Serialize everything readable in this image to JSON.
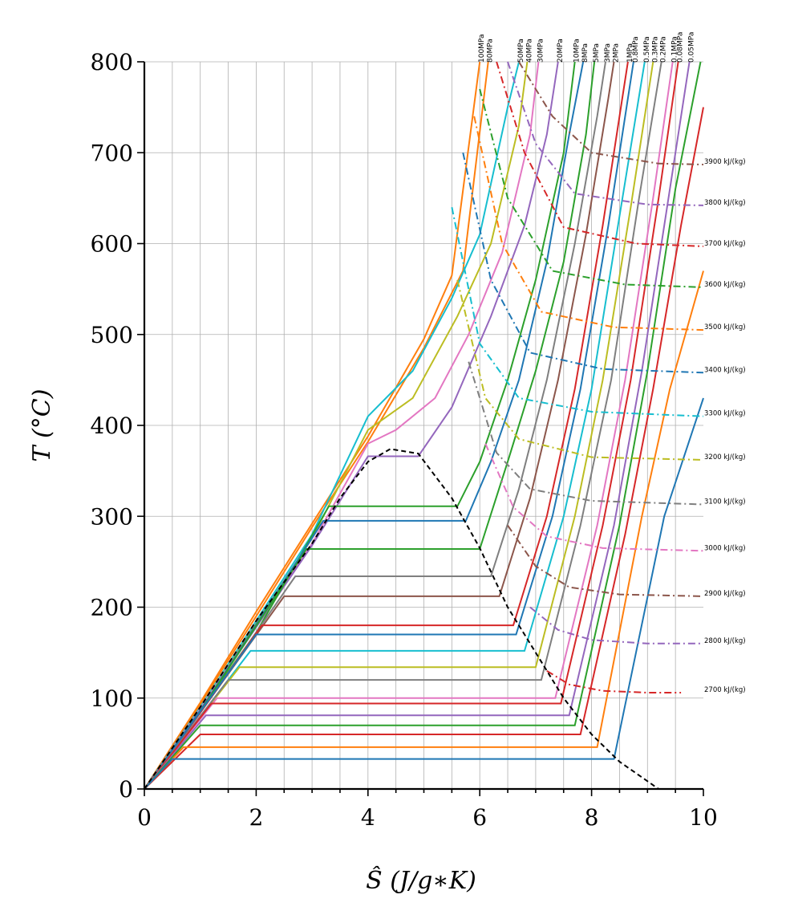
{
  "chart_data": {
    "type": "line",
    "xlabel": "Ŝ (J/g∗K)",
    "ylabel": "T (°C)",
    "xlim": [
      0,
      10
    ],
    "ylim": [
      0,
      800
    ],
    "x_ticks": [
      "0",
      "2",
      "4",
      "6",
      "8",
      "10"
    ],
    "y_ticks": [
      "0",
      "100",
      "200",
      "300",
      "400",
      "500",
      "600",
      "700",
      "800"
    ],
    "grid": true,
    "saturation_dome": {
      "style": "dashed",
      "color": "#000000",
      "points": [
        [
          0,
          0
        ],
        [
          1,
          90
        ],
        [
          2,
          185
        ],
        [
          3,
          270
        ],
        [
          3.5,
          320
        ],
        [
          4,
          360
        ],
        [
          4.4,
          374
        ],
        [
          4.9,
          369
        ],
        [
          5.5,
          320
        ],
        [
          6,
          265
        ],
        [
          6.5,
          200
        ],
        [
          7,
          150
        ],
        [
          7.5,
          100
        ],
        [
          8,
          60
        ],
        [
          8.5,
          30
        ],
        [
          9.2,
          0
        ]
      ]
    },
    "isobars": [
      {
        "label": "100MPa",
        "color": "#ff7f0e",
        "points": [
          [
            0,
            0
          ],
          [
            1,
            95
          ],
          [
            2,
            195
          ],
          [
            3,
            292
          ],
          [
            4,
            388
          ],
          [
            5,
            495
          ],
          [
            5.5,
            565
          ],
          [
            6,
            800
          ]
        ]
      },
      {
        "label": "80MPa",
        "color": "#ff7f0e",
        "points": [
          [
            0,
            0
          ],
          [
            1,
            93
          ],
          [
            2,
            190
          ],
          [
            3,
            288
          ],
          [
            4,
            382
          ],
          [
            5,
            485
          ],
          [
            5.7,
            570
          ],
          [
            6.15,
            800
          ]
        ]
      },
      {
        "label": "50MPa",
        "color": "#17becf",
        "points": [
          [
            0,
            0
          ],
          [
            1,
            90
          ],
          [
            2,
            185
          ],
          [
            3,
            280
          ],
          [
            4,
            410
          ],
          [
            4.8,
            460
          ],
          [
            5.5,
            540
          ],
          [
            6,
            610
          ],
          [
            6.5,
            750
          ],
          [
            6.7,
            800
          ]
        ]
      },
      {
        "label": "40MPa",
        "color": "#bcbd22",
        "points": [
          [
            0,
            0
          ],
          [
            1,
            88
          ],
          [
            2,
            182
          ],
          [
            3,
            276
          ],
          [
            4,
            395
          ],
          [
            4.8,
            430
          ],
          [
            5.6,
            520
          ],
          [
            6.2,
            600
          ],
          [
            6.7,
            730
          ],
          [
            6.85,
            800
          ]
        ]
      },
      {
        "label": "30MPa",
        "color": "#e377c2",
        "points": [
          [
            0,
            0
          ],
          [
            1,
            88
          ],
          [
            2,
            180
          ],
          [
            3,
            270
          ],
          [
            4,
            380
          ],
          [
            4.5,
            395
          ],
          [
            5.2,
            430
          ],
          [
            5.8,
            500
          ],
          [
            6.4,
            590
          ],
          [
            6.9,
            720
          ],
          [
            7.05,
            800
          ]
        ]
      },
      {
        "label": "20MPa",
        "color": "#9467bd",
        "points": [
          [
            0,
            0
          ],
          [
            1,
            87
          ],
          [
            2,
            178
          ],
          [
            3,
            268
          ],
          [
            4,
            366
          ],
          [
            4.9,
            366
          ],
          [
            5.5,
            420
          ],
          [
            6.2,
            520
          ],
          [
            6.8,
            620
          ],
          [
            7.2,
            720
          ],
          [
            7.4,
            800
          ]
        ]
      },
      {
        "label": "10MPa",
        "color": "#2ca02c",
        "points": [
          [
            0,
            0
          ],
          [
            1,
            86
          ],
          [
            2,
            172
          ],
          [
            3.3,
            311
          ],
          [
            5.6,
            311
          ],
          [
            6,
            360
          ],
          [
            6.5,
            450
          ],
          [
            7,
            560
          ],
          [
            7.5,
            700
          ],
          [
            7.7,
            800
          ]
        ]
      },
      {
        "label": "8MPa",
        "color": "#1f77b4",
        "points": [
          [
            0,
            0
          ],
          [
            1,
            86
          ],
          [
            3.2,
            295
          ],
          [
            5.75,
            295
          ],
          [
            6.2,
            360
          ],
          [
            6.7,
            450
          ],
          [
            7.2,
            580
          ],
          [
            7.6,
            720
          ],
          [
            7.85,
            800
          ]
        ]
      },
      {
        "label": "5MPa",
        "color": "#2ca02c",
        "points": [
          [
            0,
            0
          ],
          [
            1,
            85
          ],
          [
            2.9,
            264
          ],
          [
            6,
            264
          ],
          [
            6.5,
            360
          ],
          [
            7,
            460
          ],
          [
            7.5,
            580
          ],
          [
            7.9,
            720
          ],
          [
            8.05,
            800
          ]
        ]
      },
      {
        "label": "3MPa",
        "color": "#7f7f7f",
        "points": [
          [
            0,
            0
          ],
          [
            1,
            84
          ],
          [
            2.7,
            234
          ],
          [
            6.2,
            234
          ],
          [
            6.7,
            330
          ],
          [
            7.2,
            450
          ],
          [
            7.7,
            600
          ],
          [
            8.1,
            740
          ],
          [
            8.25,
            800
          ]
        ]
      },
      {
        "label": "2MPa",
        "color": "#8c564b",
        "points": [
          [
            0,
            0
          ],
          [
            1,
            84
          ],
          [
            2.5,
            212
          ],
          [
            6.35,
            212
          ],
          [
            6.9,
            320
          ],
          [
            7.4,
            450
          ],
          [
            7.9,
            610
          ],
          [
            8.3,
            760
          ],
          [
            8.4,
            800
          ]
        ]
      },
      {
        "label": "1MPa",
        "color": "#d62728",
        "points": [
          [
            0,
            0
          ],
          [
            1,
            84
          ],
          [
            2.1,
            180
          ],
          [
            6.6,
            180
          ],
          [
            7.2,
            300
          ],
          [
            7.7,
            440
          ],
          [
            8.2,
            620
          ],
          [
            8.55,
            760
          ],
          [
            8.65,
            800
          ]
        ]
      },
      {
        "label": "0.8MPa",
        "color": "#1f77b4",
        "points": [
          [
            0,
            0
          ],
          [
            2,
            170
          ],
          [
            6.65,
            170
          ],
          [
            7.3,
            300
          ],
          [
            7.8,
            440
          ],
          [
            8.3,
            620
          ],
          [
            8.75,
            800
          ]
        ]
      },
      {
        "label": "0.5MPa",
        "color": "#17becf",
        "points": [
          [
            0,
            0
          ],
          [
            1.9,
            152
          ],
          [
            6.8,
            152
          ],
          [
            7.5,
            300
          ],
          [
            8,
            440
          ],
          [
            8.5,
            630
          ],
          [
            8.95,
            800
          ]
        ]
      },
      {
        "label": "0.3MPa",
        "color": "#bcbd22",
        "points": [
          [
            0,
            0
          ],
          [
            1.7,
            134
          ],
          [
            7,
            134
          ],
          [
            7.7,
            300
          ],
          [
            8.2,
            450
          ],
          [
            8.7,
            640
          ],
          [
            9.1,
            800
          ]
        ]
      },
      {
        "label": "0.2MPa",
        "color": "#7f7f7f",
        "points": [
          [
            0,
            0
          ],
          [
            1.5,
            120
          ],
          [
            7.1,
            120
          ],
          [
            7.8,
            290
          ],
          [
            8.35,
            450
          ],
          [
            8.85,
            650
          ],
          [
            9.25,
            800
          ]
        ]
      },
      {
        "label": "0.1MPa",
        "color": "#e377c2",
        "points": [
          [
            0,
            0
          ],
          [
            1.3,
            100
          ],
          [
            7.35,
            100
          ],
          [
            8.1,
            290
          ],
          [
            8.6,
            450
          ],
          [
            9.1,
            650
          ],
          [
            9.45,
            800
          ]
        ]
      },
      {
        "label": "0.08MPa",
        "color": "#d62728",
        "points": [
          [
            0,
            0
          ],
          [
            1.2,
            94
          ],
          [
            7.45,
            94
          ],
          [
            8.2,
            290
          ],
          [
            8.7,
            450
          ],
          [
            9.2,
            650
          ],
          [
            9.55,
            800
          ]
        ]
      },
      {
        "label": "0.05MPa",
        "color": "#9467bd",
        "points": [
          [
            0,
            0
          ],
          [
            1.1,
            81
          ],
          [
            7.6,
            81
          ],
          [
            8.4,
            290
          ],
          [
            8.9,
            460
          ],
          [
            9.4,
            660
          ],
          [
            9.75,
            800
          ]
        ]
      },
      {
        "label": "",
        "color": "#2ca02c",
        "points": [
          [
            0,
            0
          ],
          [
            1,
            70
          ],
          [
            7.7,
            70
          ],
          [
            8.5,
            290
          ],
          [
            9,
            460
          ],
          [
            9.5,
            660
          ],
          [
            9.95,
            800
          ]
        ]
      },
      {
        "label": "",
        "color": "#d62728",
        "points": [
          [
            0,
            0
          ],
          [
            1,
            60
          ],
          [
            7.8,
            60
          ],
          [
            8.6,
            280
          ],
          [
            9.1,
            440
          ],
          [
            9.6,
            620
          ],
          [
            10,
            750
          ]
        ]
      },
      {
        "label": "",
        "color": "#ff7f0e",
        "points": [
          [
            0,
            0
          ],
          [
            0.7,
            46
          ],
          [
            8.1,
            46
          ],
          [
            8.9,
            300
          ],
          [
            9.4,
            440
          ],
          [
            10,
            570
          ]
        ]
      },
      {
        "label": "",
        "color": "#1f77b4",
        "points": [
          [
            0,
            0
          ],
          [
            0.5,
            33
          ],
          [
            8.4,
            33
          ],
          [
            9.3,
            300
          ],
          [
            10,
            430
          ]
        ]
      }
    ],
    "isenthalps": [
      {
        "label": "2700 kJ/(kg)",
        "color": "#d62728",
        "points": [
          [
            7.2,
            130
          ],
          [
            7.6,
            115
          ],
          [
            8.2,
            108
          ],
          [
            9,
            106
          ],
          [
            9.6,
            106
          ]
        ]
      },
      {
        "label": "2800 kJ/(kg)",
        "color": "#9467bd",
        "points": [
          [
            6.9,
            200
          ],
          [
            7.4,
            175
          ],
          [
            8,
            164
          ],
          [
            9,
            160
          ],
          [
            10,
            160
          ]
        ]
      },
      {
        "label": "2900 kJ/(kg)",
        "color": "#8c564b",
        "points": [
          [
            6.5,
            290
          ],
          [
            7,
            245
          ],
          [
            7.6,
            222
          ],
          [
            8.5,
            214
          ],
          [
            10,
            212
          ]
        ]
      },
      {
        "label": "3000 kJ/(kg)",
        "color": "#e377c2",
        "points": [
          [
            6.1,
            380
          ],
          [
            6.6,
            310
          ],
          [
            7.2,
            278
          ],
          [
            8.2,
            265
          ],
          [
            10,
            262
          ]
        ]
      },
      {
        "label": "3100 kJ/(kg)",
        "color": "#7f7f7f",
        "points": [
          [
            5.8,
            470
          ],
          [
            6.3,
            370
          ],
          [
            6.9,
            330
          ],
          [
            8,
            317
          ],
          [
            10,
            313
          ]
        ]
      },
      {
        "label": "3200 kJ/(kg)",
        "color": "#bcbd22",
        "points": [
          [
            5.6,
            560
          ],
          [
            6.1,
            430
          ],
          [
            6.7,
            385
          ],
          [
            8,
            365
          ],
          [
            10,
            362
          ]
        ]
      },
      {
        "label": "3300 kJ/(kg)",
        "color": "#17becf",
        "points": [
          [
            5.5,
            640
          ],
          [
            6,
            490
          ],
          [
            6.7,
            430
          ],
          [
            8,
            415
          ],
          [
            10,
            410
          ]
        ]
      },
      {
        "label": "3400 kJ/(kg)",
        "color": "#1f77b4",
        "points": [
          [
            5.7,
            700
          ],
          [
            6.2,
            560
          ],
          [
            6.9,
            480
          ],
          [
            8.2,
            462
          ],
          [
            10,
            458
          ]
        ]
      },
      {
        "label": "3500 kJ/(kg)",
        "color": "#ff7f0e",
        "points": [
          [
            5.9,
            740
          ],
          [
            6.4,
            600
          ],
          [
            7.1,
            525
          ],
          [
            8.4,
            508
          ],
          [
            10,
            505
          ]
        ]
      },
      {
        "label": "3600 kJ/(kg)",
        "color": "#2ca02c",
        "points": [
          [
            6,
            770
          ],
          [
            6.5,
            650
          ],
          [
            7.3,
            570
          ],
          [
            8.6,
            555
          ],
          [
            10,
            552
          ]
        ]
      },
      {
        "label": "3700 kJ/(kg)",
        "color": "#d62728",
        "points": [
          [
            6.3,
            800
          ],
          [
            6.8,
            700
          ],
          [
            7.5,
            618
          ],
          [
            8.8,
            600
          ],
          [
            10,
            597
          ]
        ]
      },
      {
        "label": "3800 kJ/(kg)",
        "color": "#9467bd",
        "points": [
          [
            6.5,
            800
          ],
          [
            7,
            710
          ],
          [
            7.7,
            655
          ],
          [
            9,
            643
          ],
          [
            10,
            642
          ]
        ]
      },
      {
        "label": "3900 kJ/(kg)",
        "color": "#8c564b",
        "points": [
          [
            6.7,
            800
          ],
          [
            7.3,
            740
          ],
          [
            8,
            700
          ],
          [
            9.2,
            688
          ],
          [
            10,
            687
          ]
        ]
      }
    ]
  }
}
